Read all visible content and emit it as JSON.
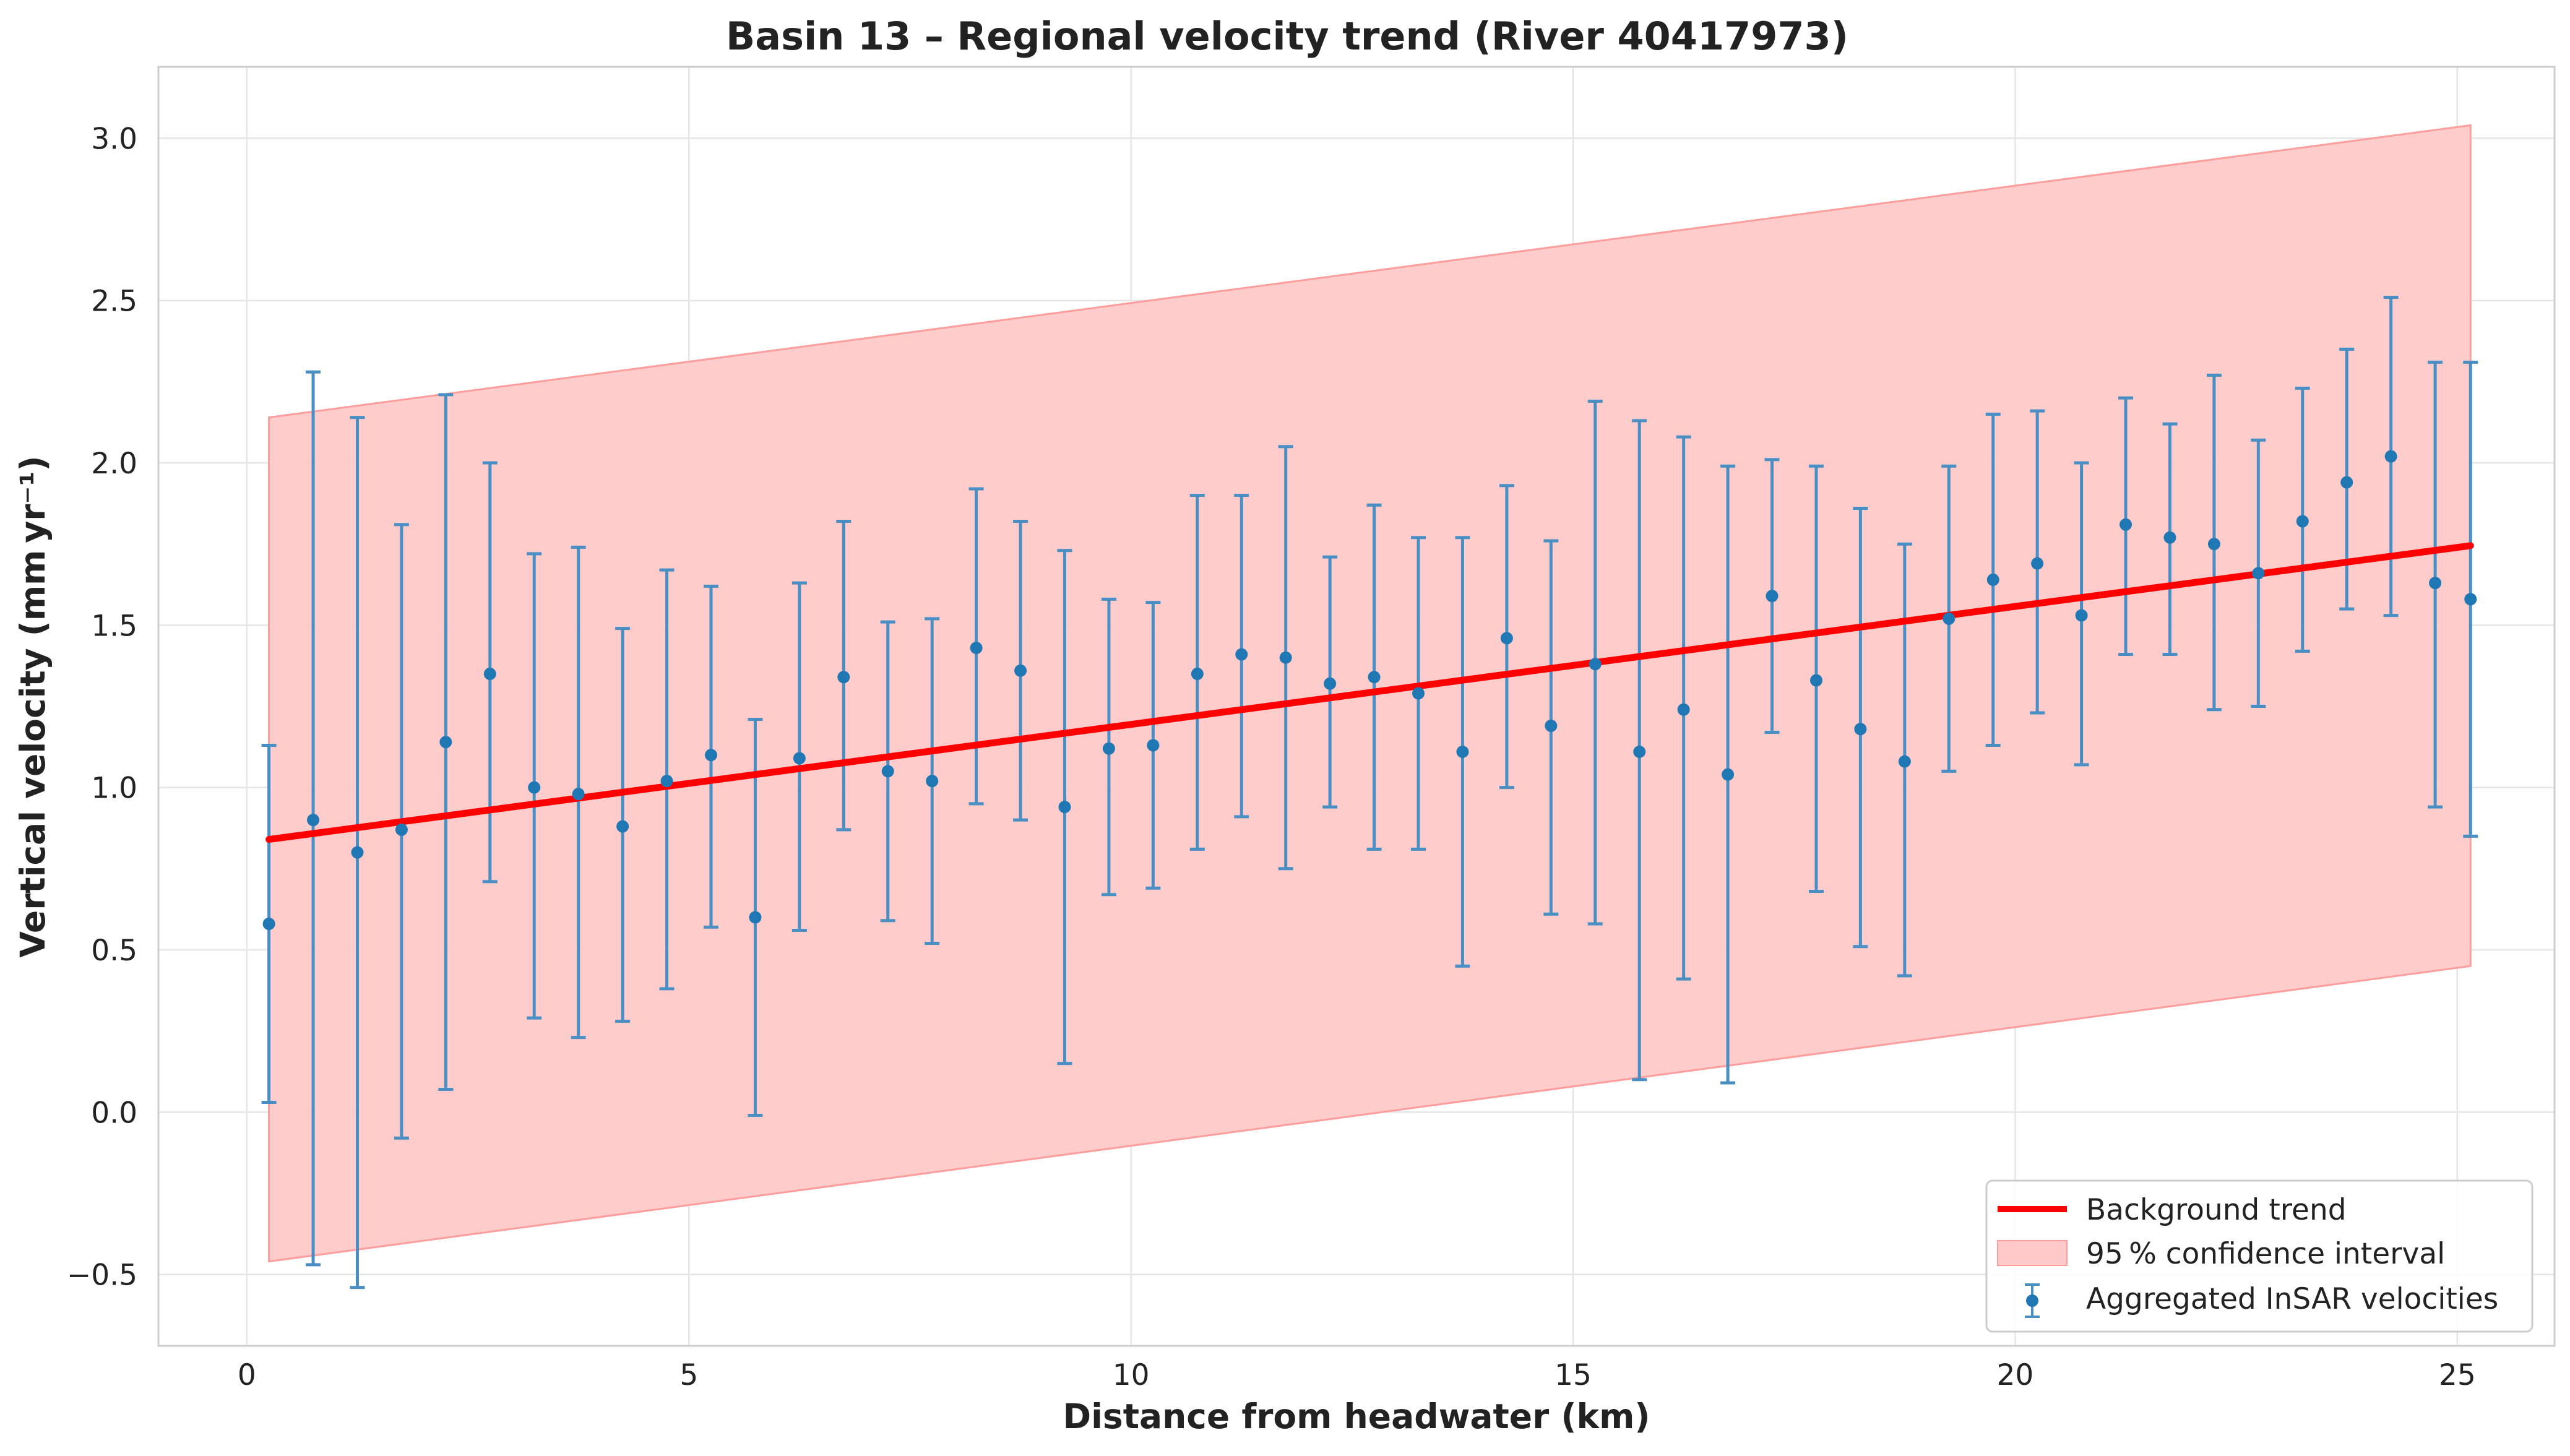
{
  "chart_data": {
    "type": "scatter",
    "title": "Basin 13 – Regional velocity trend (River 40417973)",
    "xlabel": "Distance from headwater (km)",
    "ylabel": "Vertical velocity (mm yr⁻¹)",
    "xlim": [
      -1.0,
      26.1
    ],
    "ylim": [
      -0.72,
      3.22
    ],
    "xticks": [
      0,
      5,
      10,
      15,
      20,
      25
    ],
    "yticks": [
      -0.5,
      0.0,
      0.5,
      1.0,
      1.5,
      2.0,
      2.5,
      3.0
    ],
    "ytick_labels": [
      "−0.5",
      "0.0",
      "0.5",
      "1.0",
      "1.5",
      "2.0",
      "2.5",
      "3.0"
    ],
    "grid": true,
    "legend_position": "lower-right",
    "legend": {
      "trend_label": "Background trend",
      "ci_label": "95 % confidence interval",
      "points_label": "Aggregated InSAR velocities"
    },
    "colors": {
      "trend": "#ff0000",
      "ci_fill": "#ffc9c9",
      "ci_edge": "#ff9c9c",
      "points": "#1f77b4",
      "errorbars": "#4a8fc4"
    },
    "trend": {
      "x": [
        0.25,
        25.15
      ],
      "y": [
        0.84,
        1.745
      ]
    },
    "confidence_band": {
      "x": [
        0.25,
        25.15
      ],
      "lower": [
        -0.46,
        0.45
      ],
      "upper": [
        2.14,
        3.04
      ]
    },
    "series": [
      {
        "name": "Aggregated InSAR velocities",
        "x": [
          0.25,
          0.75,
          1.25,
          1.75,
          2.25,
          2.75,
          3.25,
          3.75,
          4.25,
          4.75,
          5.25,
          5.75,
          6.25,
          6.75,
          7.25,
          7.75,
          8.25,
          8.75,
          9.25,
          9.75,
          10.25,
          10.75,
          11.25,
          11.75,
          12.25,
          12.75,
          13.25,
          13.75,
          14.25,
          14.75,
          15.25,
          15.75,
          16.25,
          16.75,
          17.25,
          17.75,
          18.25,
          18.75,
          19.25,
          19.75,
          20.25,
          20.75,
          21.25,
          21.75,
          22.25,
          22.75,
          23.25,
          23.75,
          24.25,
          24.75,
          25.15
        ],
        "y": [
          0.58,
          0.9,
          0.8,
          0.87,
          1.14,
          1.35,
          1.0,
          0.98,
          0.88,
          1.02,
          1.1,
          0.6,
          1.09,
          1.34,
          1.05,
          1.02,
          1.43,
          1.36,
          0.94,
          1.12,
          1.13,
          1.35,
          1.41,
          1.4,
          1.32,
          1.34,
          1.29,
          1.11,
          1.46,
          1.19,
          1.38,
          1.11,
          1.24,
          1.04,
          1.59,
          1.33,
          1.18,
          1.08,
          1.52,
          1.64,
          1.69,
          1.53,
          1.81,
          1.77,
          1.75,
          1.66,
          1.82,
          1.94,
          2.02,
          1.63,
          1.58
        ],
        "err_low": [
          0.03,
          -0.47,
          -0.54,
          -0.08,
          0.07,
          0.71,
          0.29,
          0.23,
          0.28,
          0.38,
          0.57,
          -0.01,
          0.56,
          0.87,
          0.59,
          0.52,
          0.95,
          0.9,
          0.15,
          0.67,
          0.69,
          0.81,
          0.91,
          0.75,
          0.94,
          0.81,
          0.81,
          0.45,
          1.0,
          0.61,
          0.58,
          0.1,
          0.41,
          0.09,
          1.17,
          0.68,
          0.51,
          0.42,
          1.05,
          1.13,
          1.23,
          1.07,
          1.41,
          1.41,
          1.24,
          1.25,
          1.42,
          1.55,
          1.53,
          0.94,
          0.85
        ],
        "err_high": [
          1.13,
          2.28,
          2.14,
          1.81,
          2.21,
          2.0,
          1.72,
          1.74,
          1.49,
          1.67,
          1.62,
          1.21,
          1.63,
          1.82,
          1.51,
          1.52,
          1.92,
          1.82,
          1.73,
          1.58,
          1.57,
          1.9,
          1.9,
          2.05,
          1.71,
          1.87,
          1.77,
          1.77,
          1.93,
          1.76,
          2.19,
          2.13,
          2.08,
          1.99,
          2.01,
          1.99,
          1.86,
          1.75,
          1.99,
          2.15,
          2.16,
          2.0,
          2.2,
          2.12,
          2.27,
          2.07,
          2.23,
          2.35,
          2.51,
          2.31,
          2.31
        ]
      }
    ]
  }
}
